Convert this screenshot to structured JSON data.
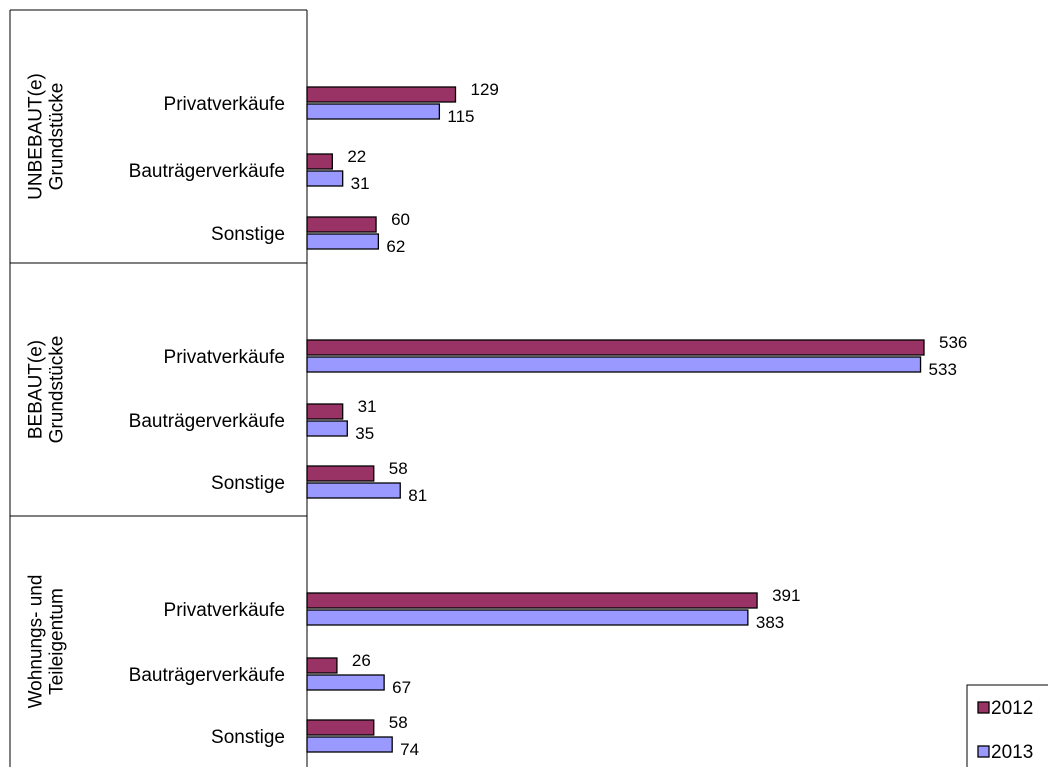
{
  "chart_data": {
    "type": "bar",
    "orientation": "horizontal",
    "groups": [
      {
        "label_lines": [
          "UNBEBAUT(e)",
          "Grundstücke"
        ],
        "categories": [
          "Privatverkäufe",
          "Bauträgerverkäufe",
          "Sonstige"
        ],
        "values_2012": [
          129,
          22,
          60
        ],
        "values_2013": [
          115,
          31,
          62
        ]
      },
      {
        "label_lines": [
          "BEBAUT(e)",
          "Grundstücke"
        ],
        "categories": [
          "Privatverkäufe",
          "Bauträgerverkäufe",
          "Sonstige"
        ],
        "values_2012": [
          536,
          31,
          58
        ],
        "values_2013": [
          533,
          35,
          81
        ]
      },
      {
        "label_lines": [
          "Wohnungs- und",
          "Teileigentum"
        ],
        "categories": [
          "Privatverkäufe",
          "Bauträgerverkäufe",
          "Sonstige"
        ],
        "values_2012": [
          391,
          26,
          58
        ],
        "values_2013": [
          383,
          67,
          74
        ]
      }
    ],
    "series": [
      {
        "name": "2012",
        "color": "#993366"
      },
      {
        "name": "2013",
        "color": "#9999ff"
      }
    ],
    "xlim": [
      0,
      536
    ],
    "grid": false,
    "legend_position": "bottom-right"
  }
}
